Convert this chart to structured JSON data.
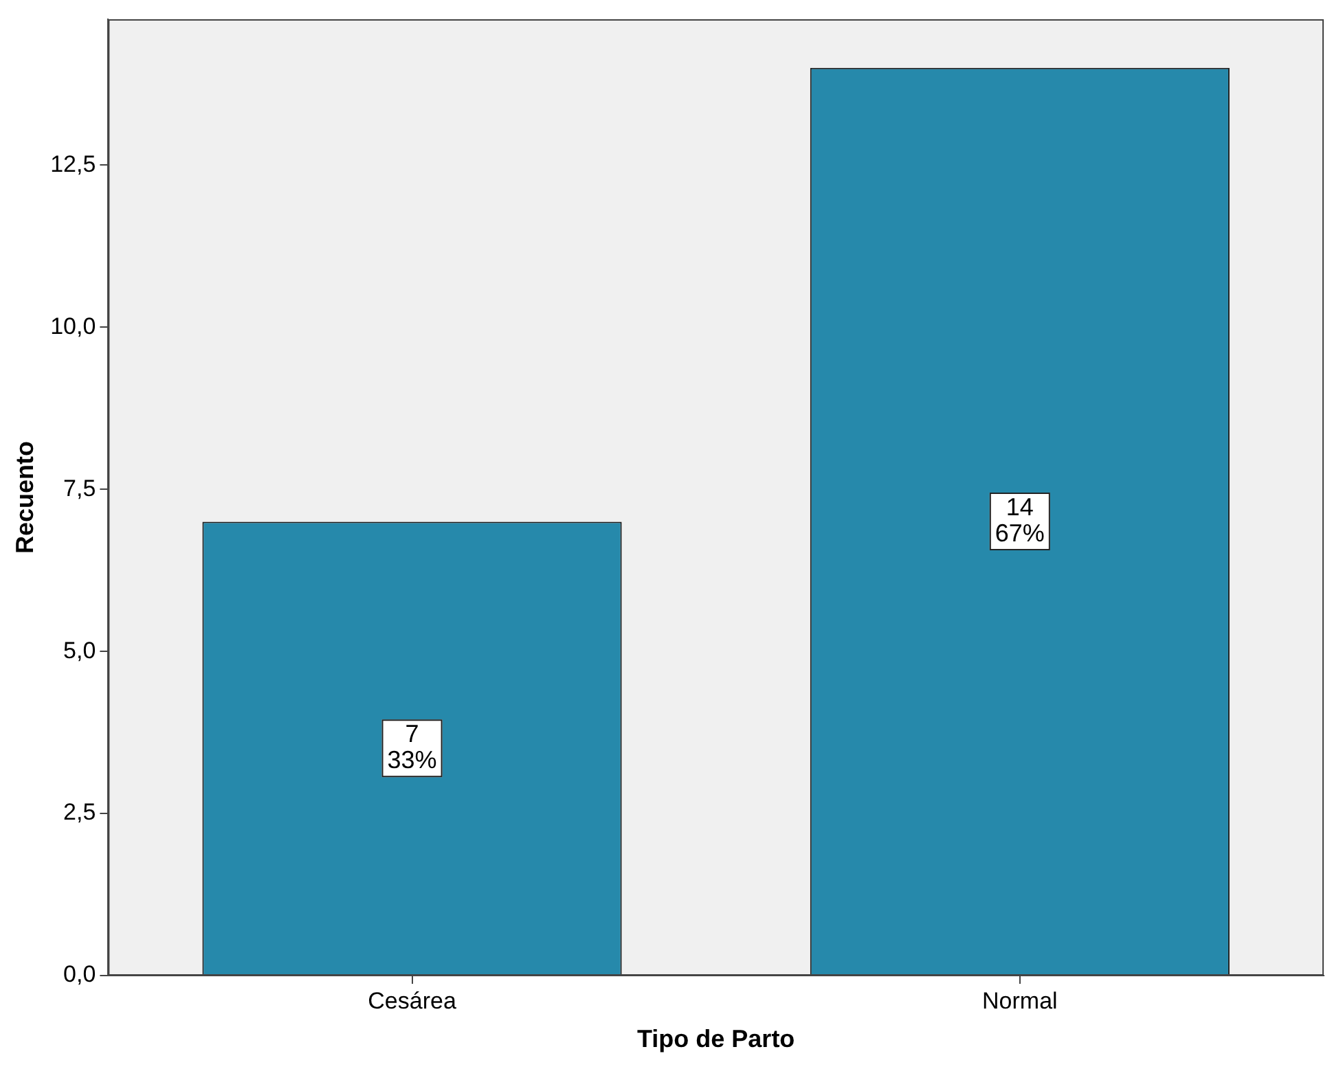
{
  "chart_data": {
    "type": "bar",
    "xlabel": "Tipo de Parto",
    "ylabel": "Recuento",
    "categories": [
      "Cesárea",
      "Normal"
    ],
    "values": [
      7,
      14
    ],
    "value_labels": [
      "7\n33%",
      "14\n67%"
    ],
    "color": "#2689ab",
    "ylim": [
      0,
      14.75
    ],
    "yticks": [
      {
        "value": 0,
        "label": "0,0"
      },
      {
        "value": 2.5,
        "label": "2,5"
      },
      {
        "value": 5,
        "label": "5,0"
      },
      {
        "value": 7.5,
        "label": "7,5"
      },
      {
        "value": 10,
        "label": "10,0"
      },
      {
        "value": 12.5,
        "label": "12,5"
      }
    ],
    "grid": false,
    "legend": false
  }
}
